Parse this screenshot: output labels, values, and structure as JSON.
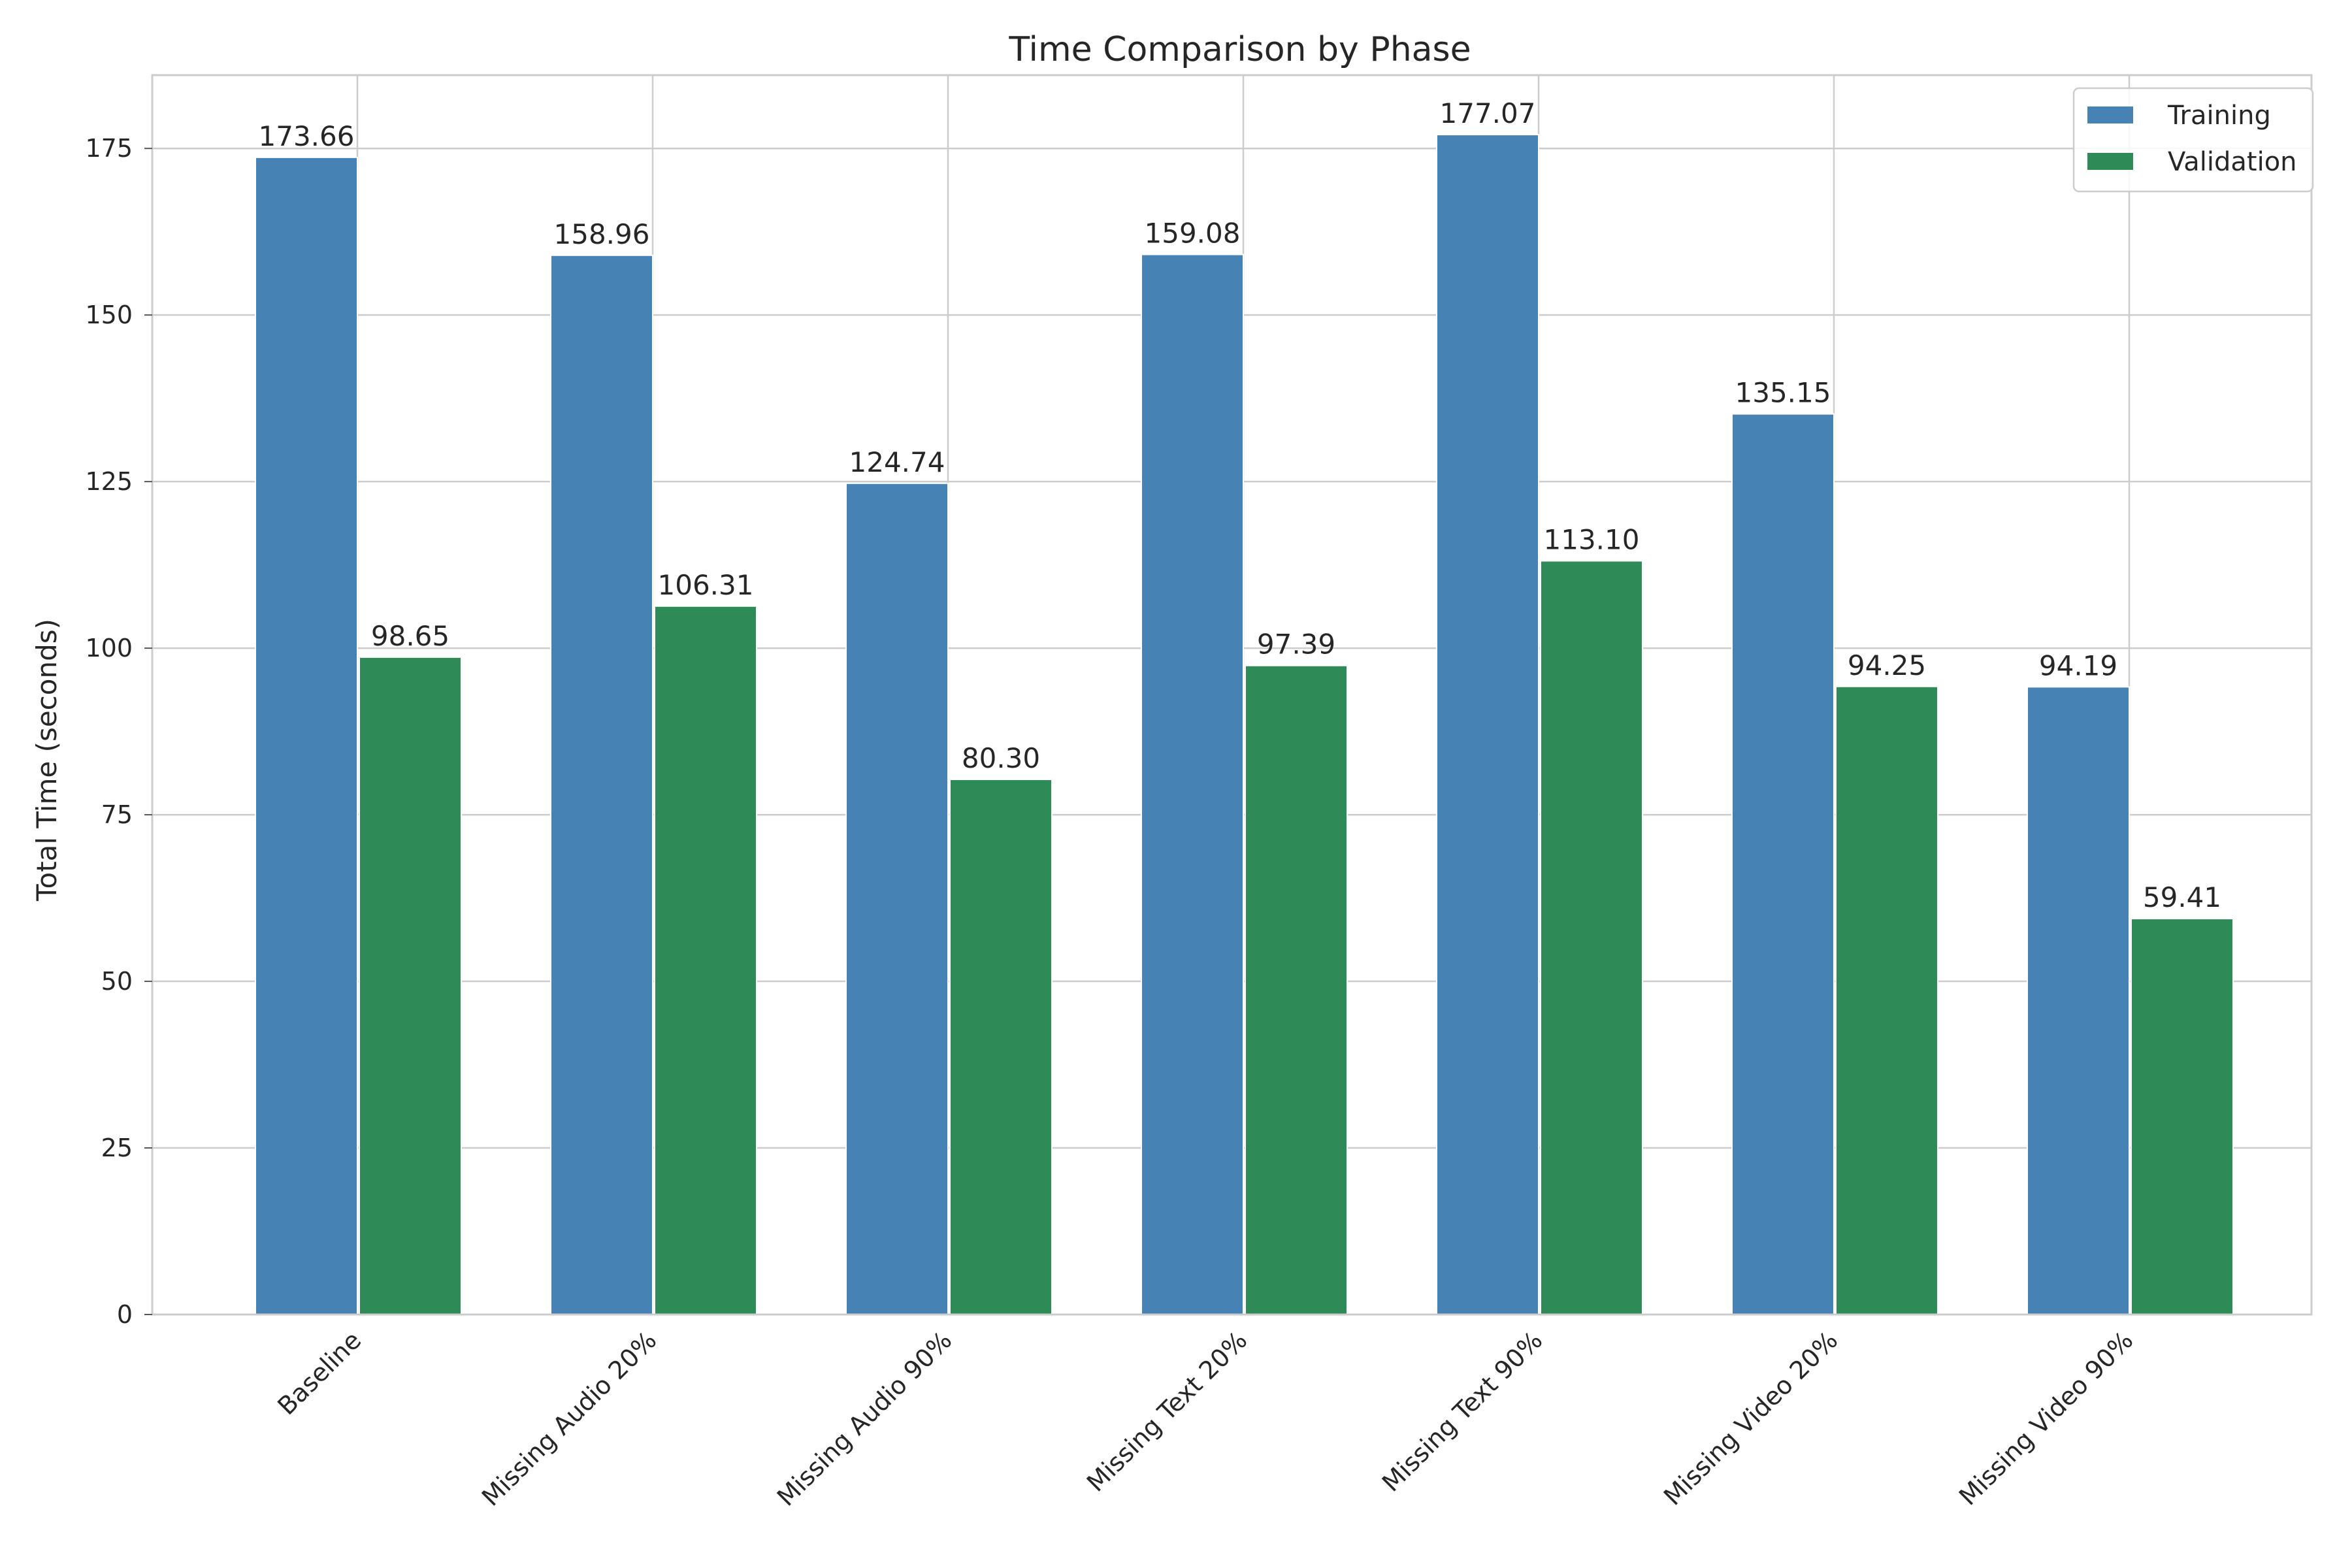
{
  "chart_data": {
    "type": "bar",
    "title": "Time Comparison by Phase",
    "xlabel": "",
    "ylabel": "Total Time (seconds)",
    "categories": [
      "Baseline",
      "Missing Audio 20%",
      "Missing Audio 90%",
      "Missing Text 20%",
      "Missing Text 90%",
      "Missing Video 20%",
      "Missing Video 90%"
    ],
    "series": [
      {
        "name": "Training",
        "color": "#4682b4",
        "values": [
          173.66,
          158.96,
          124.74,
          159.08,
          177.07,
          135.15,
          94.19
        ],
        "labels": [
          "173.66",
          "158.96",
          "124.74",
          "159.08",
          "177.07",
          "135.15",
          "94.19"
        ]
      },
      {
        "name": "Validation",
        "color": "#2e8b57",
        "values": [
          98.65,
          106.31,
          80.3,
          97.39,
          113.1,
          94.25,
          59.41
        ],
        "labels": [
          "98.65",
          "106.31",
          "80.30",
          "97.39",
          "113.10",
          "94.25",
          "59.41"
        ]
      }
    ],
    "ylim": [
      0,
      186
    ],
    "yticks": [
      0,
      25,
      50,
      75,
      100,
      125,
      150,
      175
    ],
    "grid": true,
    "legend_position": "top-right"
  }
}
